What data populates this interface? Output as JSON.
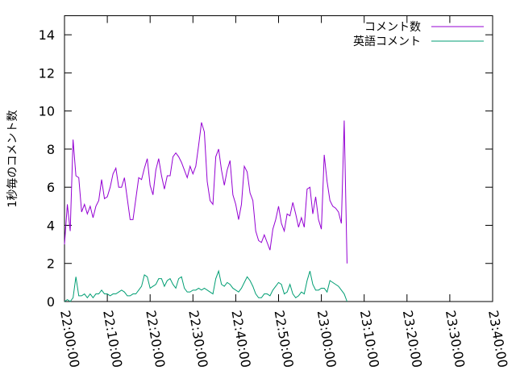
{
  "chart_data": {
    "type": "line",
    "title": "",
    "xlabel": "",
    "ylabel": "1秒毎のコメント数",
    "xlim": [
      "22:00:00",
      "23:40:00"
    ],
    "ylim": [
      0,
      15
    ],
    "xticks": [
      "22:00:00",
      "22:10:00",
      "22:20:00",
      "22:30:00",
      "22:40:00",
      "22:50:00",
      "23:00:00",
      "23:10:00",
      "23:20:00",
      "23:30:00",
      "23:40:00"
    ],
    "yticks": [
      "0",
      "2",
      "4",
      "6",
      "8",
      "10",
      "12",
      "14"
    ],
    "grid": false,
    "legend": "top-right",
    "series": [
      {
        "name": "コメント数",
        "color": "#9400d3",
        "points": [
          [
            "22:00:00",
            3.0
          ],
          [
            "22:00:40",
            5.1
          ],
          [
            "22:01:20",
            3.7
          ],
          [
            "22:02:00",
            8.5
          ],
          [
            "22:02:40",
            6.6
          ],
          [
            "22:03:20",
            6.5
          ],
          [
            "22:04:00",
            4.7
          ],
          [
            "22:04:40",
            5.1
          ],
          [
            "22:05:20",
            4.6
          ],
          [
            "22:06:00",
            5.0
          ],
          [
            "22:06:40",
            4.4
          ],
          [
            "22:07:20",
            5.0
          ],
          [
            "22:08:00",
            5.3
          ],
          [
            "22:08:40",
            6.4
          ],
          [
            "22:09:20",
            5.4
          ],
          [
            "22:10:00",
            5.5
          ],
          [
            "22:10:40",
            6.0
          ],
          [
            "22:11:20",
            6.7
          ],
          [
            "22:12:00",
            7.0
          ],
          [
            "22:12:40",
            6.0
          ],
          [
            "22:13:20",
            6.0
          ],
          [
            "22:14:00",
            6.5
          ],
          [
            "22:14:40",
            5.4
          ],
          [
            "22:15:20",
            4.3
          ],
          [
            "22:16:00",
            4.3
          ],
          [
            "22:16:40",
            5.4
          ],
          [
            "22:17:20",
            6.5
          ],
          [
            "22:18:00",
            6.4
          ],
          [
            "22:18:40",
            7.0
          ],
          [
            "22:19:20",
            7.5
          ],
          [
            "22:20:00",
            6.1
          ],
          [
            "22:20:40",
            5.6
          ],
          [
            "22:21:20",
            6.9
          ],
          [
            "22:22:00",
            7.5
          ],
          [
            "22:22:40",
            6.6
          ],
          [
            "22:23:20",
            5.9
          ],
          [
            "22:24:00",
            6.6
          ],
          [
            "22:24:40",
            6.6
          ],
          [
            "22:25:20",
            7.6
          ],
          [
            "22:26:00",
            7.8
          ],
          [
            "22:26:40",
            7.6
          ],
          [
            "22:27:20",
            7.3
          ],
          [
            "22:28:00",
            6.9
          ],
          [
            "22:28:40",
            6.5
          ],
          [
            "22:29:20",
            7.1
          ],
          [
            "22:30:00",
            6.7
          ],
          [
            "22:30:40",
            7.1
          ],
          [
            "22:31:20",
            8.2
          ],
          [
            "22:32:00",
            9.4
          ],
          [
            "22:32:40",
            8.9
          ],
          [
            "22:33:20",
            6.3
          ],
          [
            "22:34:00",
            5.3
          ],
          [
            "22:34:40",
            5.1
          ],
          [
            "22:35:20",
            7.6
          ],
          [
            "22:36:00",
            8.0
          ],
          [
            "22:36:40",
            6.9
          ],
          [
            "22:37:20",
            6.1
          ],
          [
            "22:38:00",
            6.9
          ],
          [
            "22:38:40",
            7.4
          ],
          [
            "22:39:20",
            5.6
          ],
          [
            "22:40:00",
            5.1
          ],
          [
            "22:40:40",
            4.3
          ],
          [
            "22:41:20",
            5.1
          ],
          [
            "22:42:00",
            7.1
          ],
          [
            "22:42:40",
            6.8
          ],
          [
            "22:43:20",
            5.7
          ],
          [
            "22:44:00",
            5.3
          ],
          [
            "22:44:40",
            3.7
          ],
          [
            "22:45:20",
            3.2
          ],
          [
            "22:46:00",
            3.1
          ],
          [
            "22:46:40",
            3.5
          ],
          [
            "22:47:20",
            3.1
          ],
          [
            "22:48:00",
            2.7
          ],
          [
            "22:48:40",
            3.8
          ],
          [
            "22:49:20",
            4.3
          ],
          [
            "22:50:00",
            5.0
          ],
          [
            "22:50:40",
            4.1
          ],
          [
            "22:51:20",
            3.7
          ],
          [
            "22:52:00",
            4.6
          ],
          [
            "22:52:40",
            4.5
          ],
          [
            "22:53:20",
            5.2
          ],
          [
            "22:54:00",
            4.6
          ],
          [
            "22:54:40",
            3.9
          ],
          [
            "22:55:20",
            4.4
          ],
          [
            "22:56:00",
            3.9
          ],
          [
            "22:56:40",
            5.9
          ],
          [
            "22:57:20",
            6.0
          ],
          [
            "22:58:00",
            4.6
          ],
          [
            "22:58:40",
            5.5
          ],
          [
            "22:59:20",
            4.3
          ],
          [
            "23:00:00",
            3.8
          ],
          [
            "23:00:40",
            7.7
          ],
          [
            "23:01:20",
            6.3
          ],
          [
            "23:02:00",
            5.3
          ],
          [
            "23:02:40",
            5.0
          ],
          [
            "23:03:20",
            4.9
          ],
          [
            "23:04:00",
            4.7
          ],
          [
            "23:04:40",
            4.1
          ],
          [
            "23:05:20",
            9.5
          ],
          [
            "23:06:00",
            2.0
          ]
        ]
      },
      {
        "name": "英語コメント",
        "color": "#009e73",
        "points": [
          [
            "22:00:00",
            0.0
          ],
          [
            "22:00:40",
            0.1
          ],
          [
            "22:01:20",
            0.0
          ],
          [
            "22:02:00",
            0.2
          ],
          [
            "22:02:40",
            1.3
          ],
          [
            "22:03:20",
            0.3
          ],
          [
            "22:04:00",
            0.3
          ],
          [
            "22:04:40",
            0.4
          ],
          [
            "22:05:20",
            0.2
          ],
          [
            "22:06:00",
            0.4
          ],
          [
            "22:06:40",
            0.2
          ],
          [
            "22:07:20",
            0.4
          ],
          [
            "22:08:00",
            0.4
          ],
          [
            "22:08:40",
            0.6
          ],
          [
            "22:09:20",
            0.4
          ],
          [
            "22:10:00",
            0.4
          ],
          [
            "22:10:40",
            0.3
          ],
          [
            "22:11:20",
            0.4
          ],
          [
            "22:12:00",
            0.4
          ],
          [
            "22:12:40",
            0.5
          ],
          [
            "22:13:20",
            0.6
          ],
          [
            "22:14:00",
            0.5
          ],
          [
            "22:14:40",
            0.3
          ],
          [
            "22:15:20",
            0.3
          ],
          [
            "22:16:00",
            0.4
          ],
          [
            "22:16:40",
            0.4
          ],
          [
            "22:17:20",
            0.6
          ],
          [
            "22:18:00",
            0.8
          ],
          [
            "22:18:40",
            1.4
          ],
          [
            "22:19:20",
            1.3
          ],
          [
            "22:20:00",
            0.7
          ],
          [
            "22:20:40",
            0.8
          ],
          [
            "22:21:20",
            0.9
          ],
          [
            "22:22:00",
            1.2
          ],
          [
            "22:22:40",
            1.2
          ],
          [
            "22:23:20",
            0.8
          ],
          [
            "22:24:00",
            1.1
          ],
          [
            "22:24:40",
            1.2
          ],
          [
            "22:25:20",
            0.9
          ],
          [
            "22:26:00",
            0.7
          ],
          [
            "22:26:40",
            1.2
          ],
          [
            "22:27:20",
            1.3
          ],
          [
            "22:28:00",
            0.7
          ],
          [
            "22:28:40",
            0.5
          ],
          [
            "22:29:20",
            0.5
          ],
          [
            "22:30:00",
            0.6
          ],
          [
            "22:30:40",
            0.6
          ],
          [
            "22:31:20",
            0.7
          ],
          [
            "22:32:00",
            0.6
          ],
          [
            "22:32:40",
            0.7
          ],
          [
            "22:33:20",
            0.6
          ],
          [
            "22:34:00",
            0.5
          ],
          [
            "22:34:40",
            0.4
          ],
          [
            "22:35:20",
            1.2
          ],
          [
            "22:36:00",
            1.6
          ],
          [
            "22:36:40",
            0.9
          ],
          [
            "22:37:20",
            0.8
          ],
          [
            "22:38:00",
            1.0
          ],
          [
            "22:38:40",
            0.9
          ],
          [
            "22:39:20",
            0.7
          ],
          [
            "22:40:00",
            0.6
          ],
          [
            "22:40:40",
            0.5
          ],
          [
            "22:41:20",
            0.7
          ],
          [
            "22:42:00",
            1.0
          ],
          [
            "22:42:40",
            1.3
          ],
          [
            "22:43:20",
            1.1
          ],
          [
            "22:44:00",
            0.8
          ],
          [
            "22:44:40",
            0.4
          ],
          [
            "22:45:20",
            0.2
          ],
          [
            "22:46:00",
            0.2
          ],
          [
            "22:46:40",
            0.4
          ],
          [
            "22:47:20",
            0.4
          ],
          [
            "22:48:00",
            0.3
          ],
          [
            "22:48:40",
            0.6
          ],
          [
            "22:49:20",
            0.8
          ],
          [
            "22:50:00",
            1.0
          ],
          [
            "22:50:40",
            0.9
          ],
          [
            "22:51:20",
            0.4
          ],
          [
            "22:52:00",
            0.5
          ],
          [
            "22:52:40",
            0.9
          ],
          [
            "22:53:20",
            0.4
          ],
          [
            "22:54:00",
            0.2
          ],
          [
            "22:54:40",
            0.3
          ],
          [
            "22:55:20",
            0.5
          ],
          [
            "22:56:00",
            0.4
          ],
          [
            "22:56:40",
            1.1
          ],
          [
            "22:57:20",
            1.6
          ],
          [
            "22:58:00",
            0.9
          ],
          [
            "22:58:40",
            0.6
          ],
          [
            "22:59:20",
            0.6
          ],
          [
            "23:00:00",
            0.7
          ],
          [
            "23:00:40",
            0.7
          ],
          [
            "23:01:20",
            0.5
          ],
          [
            "23:02:00",
            1.1
          ],
          [
            "23:02:40",
            1.0
          ],
          [
            "23:03:20",
            0.9
          ],
          [
            "23:04:00",
            0.8
          ],
          [
            "23:04:40",
            0.6
          ],
          [
            "23:05:20",
            0.4
          ],
          [
            "23:06:00",
            0.0
          ]
        ]
      }
    ]
  }
}
